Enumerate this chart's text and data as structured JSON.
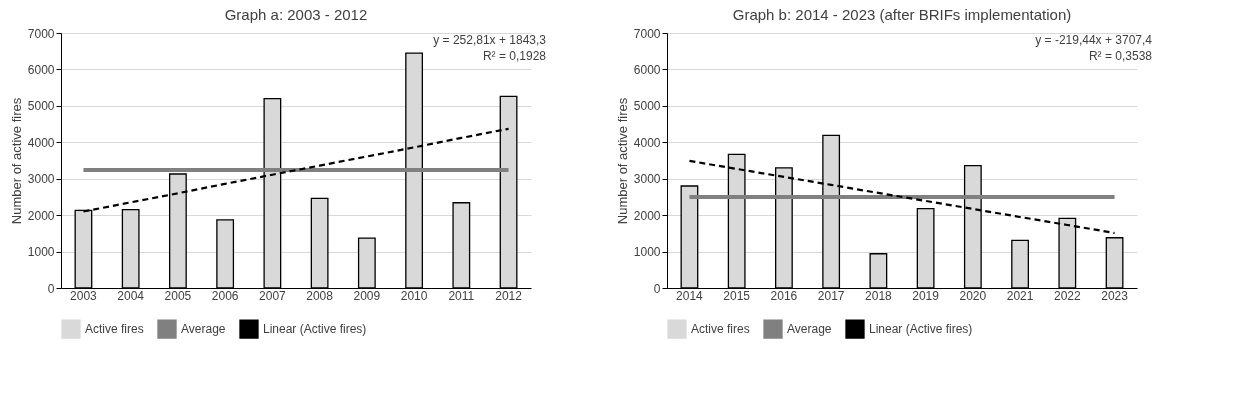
{
  "chart_data": [
    {
      "type": "bar",
      "title": "Graph a: 2003 - 2012",
      "ylabel": "Number of active fires",
      "categories": [
        "2003",
        "2004",
        "2005",
        "2006",
        "2007",
        "2008",
        "2009",
        "2010",
        "2011",
        "2012"
      ],
      "series": [
        {
          "name": "Active fires",
          "color": "#d9d9d9",
          "values": [
            2130,
            2150,
            3130,
            1870,
            5200,
            2460,
            1370,
            6450,
            2340,
            5260
          ]
        },
        {
          "name": "Average",
          "type": "line",
          "color": "#808080",
          "values": [
            3240,
            3240,
            3240,
            3240,
            3240,
            3240,
            3240,
            3240,
            3240,
            3240
          ]
        },
        {
          "name": "Linear (Active fires)",
          "type": "line",
          "color": "#000000",
          "line_style": "dashed",
          "values": [
            2100,
            2350,
            2600,
            2860,
            3110,
            3360,
            3610,
            3860,
            4120,
            4370
          ]
        }
      ],
      "ylim": [
        0,
        7000
      ],
      "yticks": [
        0,
        1000,
        2000,
        3000,
        4000,
        5000,
        6000,
        7000
      ],
      "grid": "y",
      "legend": "bottom",
      "annotations": [
        "y = 252,81x + 1843,3",
        "R² = 0,1928"
      ]
    },
    {
      "type": "bar",
      "title": "Graph b: 2014 - 2023 (after BRIFs implementation)",
      "ylabel": "Number of active fires",
      "categories": [
        "2014",
        "2015",
        "2016",
        "2017",
        "2018",
        "2019",
        "2020",
        "2021",
        "2022",
        "2023"
      ],
      "series": [
        {
          "name": "Active fires",
          "color": "#d9d9d9",
          "values": [
            2800,
            3670,
            3300,
            4190,
            940,
            2180,
            3360,
            1310,
            1910,
            1380
          ]
        },
        {
          "name": "Average",
          "type": "line",
          "color": "#808080",
          "values": [
            2500,
            2500,
            2500,
            2500,
            2500,
            2500,
            2500,
            2500,
            2500,
            2500
          ]
        },
        {
          "name": "Linear (Active fires)",
          "type": "line",
          "color": "#000000",
          "line_style": "dashed",
          "values": [
            3490,
            3270,
            3050,
            2830,
            2610,
            2390,
            2170,
            1950,
            1730,
            1510
          ]
        }
      ],
      "ylim": [
        0,
        7000
      ],
      "yticks": [
        0,
        1000,
        2000,
        3000,
        4000,
        5000,
        6000,
        7000
      ],
      "grid": "y",
      "legend": "bottom",
      "annotations": [
        "y = -219,44x + 3707,4",
        "R² = 0,3538"
      ]
    }
  ]
}
